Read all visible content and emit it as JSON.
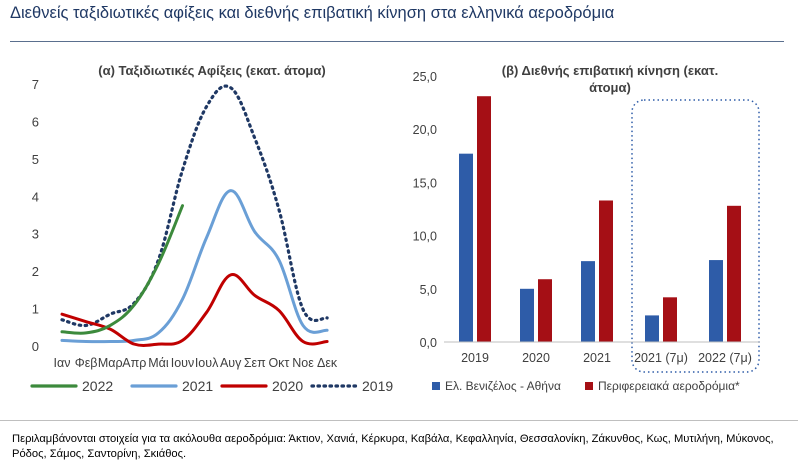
{
  "title": "Διεθνείς ταξιδιωτικές αφίξεις και διεθνής επιβατική κίνηση στα ελληνικά αεροδρόμια",
  "footnote": "Περιλαμβάνονται στοιχεία για τα ακόλουθα αεροδρόμια: Άκτιον, Χανιά, Κέρκυρα, Καβάλα, Κεφαλληνία, Θεσσαλονίκη, Ζάκυνθος, Κως, Μυτιλήνη, Μύκονος, Ρόδος, Σάμος, Σαντορίνη, Σκιάθος.",
  "chart_data": [
    {
      "type": "line",
      "title": "(α) Ταξιδιωτικές Αφίξεις (εκατ. άτομα)",
      "categories": [
        "Ιαν",
        "Φεβ",
        "Μαρ",
        "Απρ",
        "Μάι",
        "Ιουν",
        "Ιουλ",
        "Αυγ",
        "Σεπ",
        "Οκτ",
        "Νοε",
        "Δεκ"
      ],
      "ylim": [
        0,
        7
      ],
      "yticks": [
        "0",
        "1",
        "2",
        "3",
        "4",
        "5",
        "6",
        "7"
      ],
      "legend": "bottom",
      "series": [
        {
          "name": "2022",
          "color": "#3c8a3c",
          "style": "solid",
          "values": [
            0.38,
            0.35,
            0.55,
            1.1,
            2.2,
            3.75,
            null,
            null,
            null,
            null,
            null,
            null
          ]
        },
        {
          "name": "2021",
          "color": "#6a9fd6",
          "style": "solid",
          "values": [
            0.15,
            0.12,
            0.12,
            0.15,
            0.35,
            1.25,
            2.9,
            4.15,
            3.05,
            2.3,
            0.55,
            0.42
          ]
        },
        {
          "name": "2020",
          "color": "#c00000",
          "style": "solid",
          "values": [
            0.85,
            0.65,
            0.45,
            0.05,
            0.05,
            0.15,
            0.9,
            1.9,
            1.35,
            0.95,
            0.12,
            0.12
          ]
        },
        {
          "name": "2019",
          "color": "#1f3864",
          "style": "dotted",
          "values": [
            0.7,
            0.55,
            0.85,
            1.15,
            2.3,
            4.7,
            6.4,
            6.9,
            5.55,
            3.65,
            0.98,
            0.75
          ]
        }
      ]
    },
    {
      "type": "bar",
      "title": "(β) Διεθνής επιβατική κίνηση (εκατ. άτομα)",
      "categories": [
        "2019",
        "2020",
        "2021",
        "2021 (7μ)",
        "2022 (7μ)"
      ],
      "ylim": [
        0,
        25
      ],
      "yticks": [
        "0,0",
        "5,0",
        "10,0",
        "15,0",
        "20,0",
        "25,0"
      ],
      "legend": "bottom",
      "highlight_categories": [
        "2021 (7μ)",
        "2022 (7μ)"
      ],
      "series": [
        {
          "name": "Ελ. Βενιζέλος - Αθήνα",
          "color": "#2e5ca8",
          "values": [
            17.7,
            5.0,
            7.6,
            2.5,
            7.7
          ]
        },
        {
          "name": "Περιφερειακά αεροδρόμια*",
          "color": "#a50f15",
          "values": [
            23.1,
            5.9,
            13.3,
            4.2,
            12.8
          ]
        }
      ]
    }
  ]
}
